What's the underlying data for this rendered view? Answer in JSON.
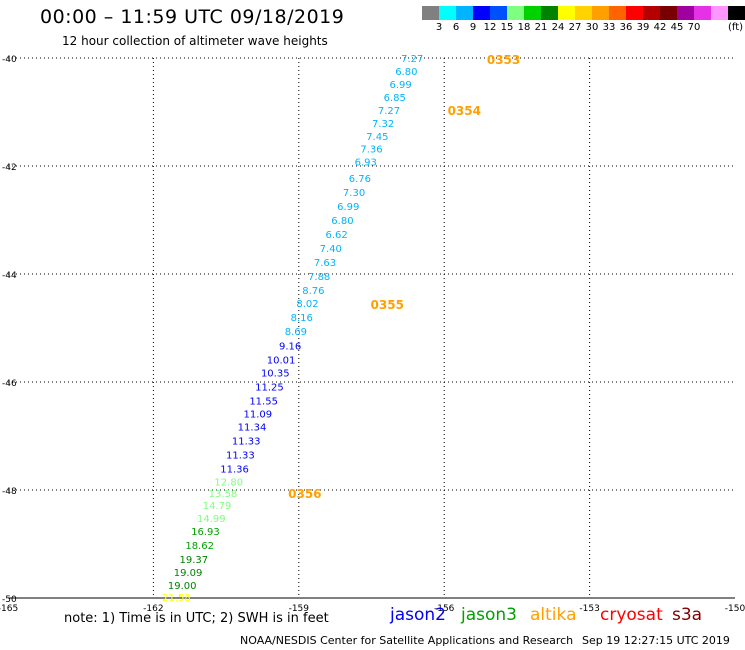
{
  "header": {
    "title": "00:00 – 11:59 UTC 09/18/2019",
    "subtitle": "12 hour collection of altimeter wave heights"
  },
  "colorbar": {
    "colors": [
      "#808080",
      "#00ffff",
      "#00b4ff",
      "#0000ff",
      "#0050ff",
      "#7fff7f",
      "#00d200",
      "#008200",
      "#ffff00",
      "#ffd200",
      "#ffa000",
      "#ff6400",
      "#ff0000",
      "#b40000",
      "#780000",
      "#a000a0",
      "#e632e6",
      "#ff96ff",
      "#000000"
    ],
    "tick_labels": [
      "3",
      "6",
      "9",
      "12",
      "15",
      "18",
      "21",
      "24",
      "27",
      "30",
      "33",
      "36",
      "39",
      "42",
      "45",
      "70"
    ],
    "units": "(ft)"
  },
  "map": {
    "lat_labels": [
      "-40",
      "-42",
      "-44",
      "-46",
      "-48",
      "-50"
    ],
    "lon_labels": [
      "-165",
      "-162",
      "-159",
      "-156",
      "-153",
      "-150"
    ],
    "observations": [
      {
        "v": "7.27",
        "lat": -40.0,
        "lon": -156.43,
        "c": "#00b4ff"
      },
      {
        "v": "6.80",
        "lat": -40.24,
        "lon": -156.55,
        "c": "#00b4ff"
      },
      {
        "v": "6.99",
        "lat": -40.48,
        "lon": -156.67,
        "c": "#00b4ff"
      },
      {
        "v": "6.85",
        "lat": -40.72,
        "lon": -156.79,
        "c": "#00b4ff"
      },
      {
        "v": "7.27",
        "lat": -40.96,
        "lon": -156.91,
        "c": "#00b4ff"
      },
      {
        "v": "7.32",
        "lat": -41.2,
        "lon": -157.03,
        "c": "#00b4ff"
      },
      {
        "v": "7.45",
        "lat": -41.44,
        "lon": -157.15,
        "c": "#00b4ff"
      },
      {
        "v": "7.36",
        "lat": -41.68,
        "lon": -157.27,
        "c": "#00b4ff"
      },
      {
        "v": "6.93",
        "lat": -41.92,
        "lon": -157.39,
        "c": "#00b4ff"
      },
      {
        "v": "6.76",
        "lat": -42.22,
        "lon": -157.51,
        "c": "#00b4ff"
      },
      {
        "v": "7.30",
        "lat": -42.48,
        "lon": -157.63,
        "c": "#00b4ff"
      },
      {
        "v": "6.99",
        "lat": -42.74,
        "lon": -157.75,
        "c": "#00b4ff"
      },
      {
        "v": "6.80",
        "lat": -43.0,
        "lon": -157.87,
        "c": "#00b4ff"
      },
      {
        "v": "6.62",
        "lat": -43.26,
        "lon": -157.99,
        "c": "#00b4ff"
      },
      {
        "v": "7.40",
        "lat": -43.52,
        "lon": -158.11,
        "c": "#00b4ff"
      },
      {
        "v": "7.63",
        "lat": -43.78,
        "lon": -158.23,
        "c": "#00b4ff"
      },
      {
        "v": "7.88",
        "lat": -44.04,
        "lon": -158.35,
        "c": "#00b4ff"
      },
      {
        "v": "8.76",
        "lat": -44.3,
        "lon": -158.47,
        "c": "#00b4ff"
      },
      {
        "v": "8.02",
        "lat": -44.54,
        "lon": -158.59,
        "c": "#00b4ff"
      },
      {
        "v": "8.16",
        "lat": -44.8,
        "lon": -158.71,
        "c": "#00b4ff"
      },
      {
        "v": "8.69",
        "lat": -45.06,
        "lon": -158.83,
        "c": "#00b4ff"
      },
      {
        "v": "9.16",
        "lat": -45.32,
        "lon": -158.95,
        "c": "#0000ff"
      },
      {
        "v": "10.01",
        "lat": -45.58,
        "lon": -159.07,
        "c": "#0000ff"
      },
      {
        "v": "10.35",
        "lat": -45.82,
        "lon": -159.19,
        "c": "#0000ff"
      },
      {
        "v": "11.25",
        "lat": -46.08,
        "lon": -159.31,
        "c": "#0000ff"
      },
      {
        "v": "11.55",
        "lat": -46.34,
        "lon": -159.43,
        "c": "#0000ff"
      },
      {
        "v": "11.09",
        "lat": -46.58,
        "lon": -159.55,
        "c": "#0000ff"
      },
      {
        "v": "11.34",
        "lat": -46.82,
        "lon": -159.67,
        "c": "#0000ff"
      },
      {
        "v": "11.33",
        "lat": -47.08,
        "lon": -159.79,
        "c": "#0000ff"
      },
      {
        "v": "11.33",
        "lat": -47.34,
        "lon": -159.91,
        "c": "#0000ff"
      },
      {
        "v": "11.36",
        "lat": -47.6,
        "lon": -160.03,
        "c": "#0000ff"
      },
      {
        "v": "12.80",
        "lat": -47.84,
        "lon": -160.15,
        "c": "#7fff7f"
      },
      {
        "v": "13.58",
        "lat": -48.06,
        "lon": -160.27,
        "c": "#7fff7f"
      },
      {
        "v": "14.79",
        "lat": -48.28,
        "lon": -160.39,
        "c": "#7fff7f"
      },
      {
        "v": "14.99",
        "lat": -48.52,
        "lon": -160.51,
        "c": "#7fff7f"
      },
      {
        "v": "16.93",
        "lat": -48.76,
        "lon": -160.63,
        "c": "#00a000"
      },
      {
        "v": "18.62",
        "lat": -49.02,
        "lon": -160.75,
        "c": "#00a000"
      },
      {
        "v": "19.37",
        "lat": -49.28,
        "lon": -160.87,
        "c": "#008200"
      },
      {
        "v": "19.09",
        "lat": -49.52,
        "lon": -160.99,
        "c": "#008200"
      },
      {
        "v": "19.00",
        "lat": -49.76,
        "lon": -161.11,
        "c": "#008200"
      },
      {
        "v": "21.58",
        "lat": -49.98,
        "lon": -161.23,
        "c": "#ffff00"
      }
    ],
    "time_markers": [
      {
        "t": "0353",
        "lat": -40.02,
        "lon": -155.12
      },
      {
        "t": "0354",
        "lat": -40.96,
        "lon": -155.93
      },
      {
        "t": "0355",
        "lat": -44.56,
        "lon": -157.52
      },
      {
        "t": "0356",
        "lat": -48.06,
        "lon": -159.22
      }
    ],
    "marker_color": "#ffa000"
  },
  "footer": {
    "note": "note:  1) Time is in UTC;  2) SWH is in feet",
    "legend": [
      {
        "name": "jason2",
        "color": "#0000ff"
      },
      {
        "name": "jason3",
        "color": "#00a000"
      },
      {
        "name": "altika",
        "color": "#ffa000"
      },
      {
        "name": "cryosat",
        "color": "#ff0000"
      },
      {
        "name": "s3a",
        "color": "#800000"
      }
    ],
    "credit": "NOAA/NESDIS Center for Satellite Applications and Research",
    "timestamp": "Sep 19 12:27:15 UTC 2019"
  }
}
